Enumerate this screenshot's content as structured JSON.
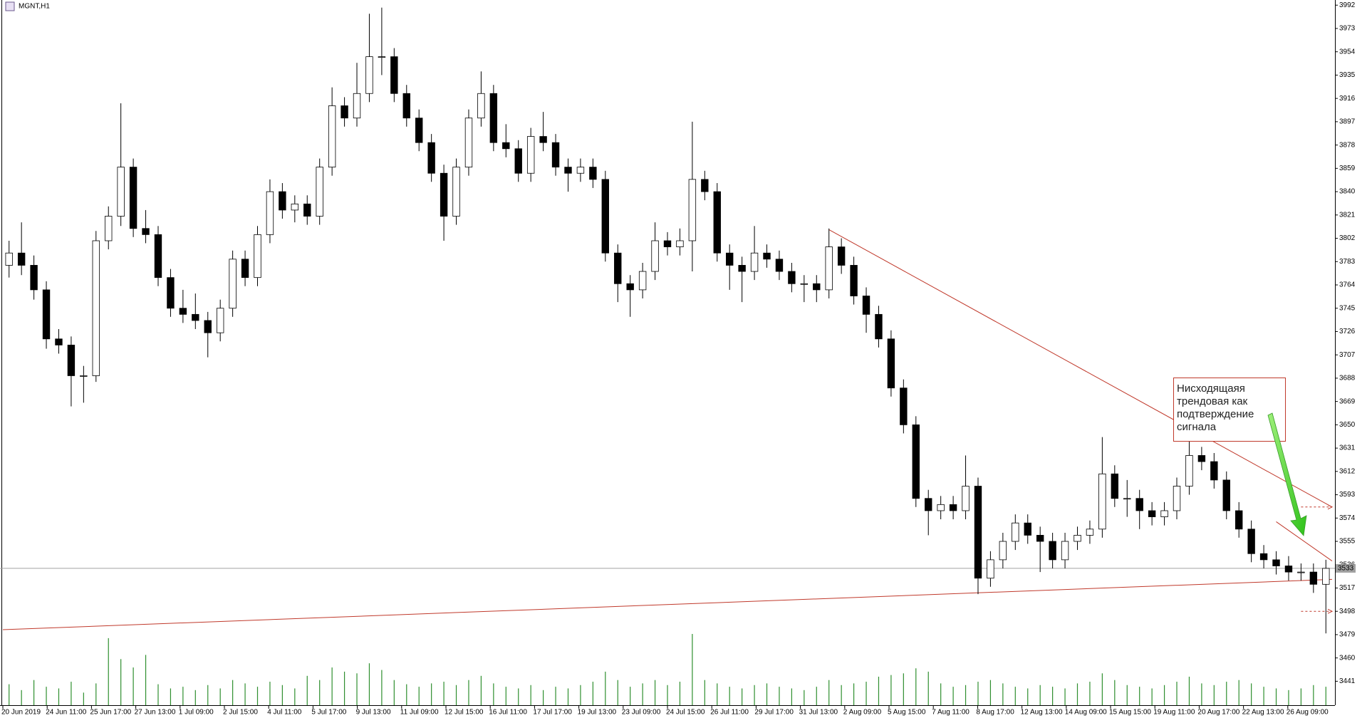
{
  "chart_data": {
    "type": "candlestick",
    "title": "MGNT,H1",
    "xticks": [
      "20 Jun 2019",
      "24 Jun 11:00",
      "25 Jun 17:00",
      "27 Jun 13:00",
      "1 Jul 09:00",
      "2 Jul 15:00",
      "4 Jul 11:00",
      "5 Jul 17:00",
      "9 Jul 13:00",
      "11 Jul 09:00",
      "12 Jul 15:00",
      "16 Jul 11:00",
      "17 Jul 17:00",
      "19 Jul 13:00",
      "23 Jul 09:00",
      "24 Jul 15:00",
      "26 Jul 11:00",
      "29 Jul 17:00",
      "31 Jul 13:00",
      "2 Aug 09:00",
      "5 Aug 15:00",
      "7 Aug 11:00",
      "8 Aug 17:00",
      "12 Aug 13:00",
      "14 Aug 09:00",
      "15 Aug 15:00",
      "19 Aug 11:00",
      "20 Aug 17:00",
      "22 Aug 13:00",
      "26 Aug 09:00"
    ],
    "open": [
      3780,
      3790,
      3780,
      3760,
      3720,
      3715,
      3690,
      3690,
      3800,
      3820,
      3860,
      3810,
      3805,
      3770,
      3745,
      3740,
      3735,
      3725,
      3745,
      3785,
      3770,
      3805,
      3840,
      3825,
      3830,
      3820,
      3860,
      3910,
      3900,
      3920,
      3950,
      3950,
      3920,
      3900,
      3880,
      3855,
      3820,
      3860,
      3900,
      3920,
      3880,
      3875,
      3855,
      3885,
      3880,
      3860,
      3855,
      3860,
      3850,
      3790,
      3765,
      3760,
      3775,
      3800,
      3795,
      3800,
      3850,
      3840,
      3790,
      3780,
      3775,
      3790,
      3785,
      3775,
      3765,
      3765,
      3760,
      3795,
      3780,
      3755,
      3740,
      3720,
      3680,
      3650,
      3590,
      3580,
      3585,
      3580,
      3600,
      3525,
      3540,
      3555,
      3570,
      3560,
      3555,
      3540,
      3555,
      3560,
      3565,
      3610,
      3590,
      3590,
      3580,
      3575,
      3580,
      3600,
      3625,
      3620,
      3605,
      3580,
      3565,
      3545,
      3540,
      3535,
      3530,
      3530,
      3520
    ],
    "high": [
      3800,
      3815,
      3788,
      3767,
      3728,
      3722,
      3698,
      3808,
      3828,
      3912,
      3867,
      3825,
      3812,
      3777,
      3760,
      3757,
      3742,
      3752,
      3792,
      3792,
      3812,
      3850,
      3847,
      3837,
      3837,
      3867,
      3925,
      3917,
      3945,
      3985,
      3990,
      3957,
      3927,
      3907,
      3887,
      3862,
      3867,
      3907,
      3938,
      3927,
      3895,
      3882,
      3892,
      3905,
      3887,
      3867,
      3867,
      3867,
      3857,
      3797,
      3772,
      3782,
      3815,
      3807,
      3810,
      3897,
      3857,
      3847,
      3797,
      3787,
      3812,
      3797,
      3792,
      3782,
      3772,
      3772,
      3810,
      3802,
      3787,
      3762,
      3747,
      3727,
      3687,
      3657,
      3597,
      3592,
      3592,
      3625,
      3607,
      3547,
      3562,
      3577,
      3577,
      3567,
      3562,
      3562,
      3567,
      3572,
      3640,
      3617,
      3605,
      3597,
      3587,
      3587,
      3607,
      3640,
      3632,
      3627,
      3612,
      3587,
      3572,
      3552,
      3547,
      3543,
      3537,
      3537,
      3540
    ],
    "low": [
      3770,
      3772,
      3752,
      3712,
      3708,
      3665,
      3668,
      3685,
      3793,
      3812,
      3803,
      3798,
      3763,
      3738,
      3733,
      3728,
      3705,
      3718,
      3738,
      3763,
      3763,
      3798,
      3818,
      3815,
      3813,
      3813,
      3853,
      3893,
      3893,
      3913,
      3935,
      3913,
      3893,
      3873,
      3848,
      3800,
      3813,
      3853,
      3893,
      3873,
      3868,
      3848,
      3848,
      3873,
      3853,
      3840,
      3848,
      3843,
      3783,
      3750,
      3738,
      3753,
      3768,
      3788,
      3788,
      3775,
      3833,
      3783,
      3760,
      3750,
      3768,
      3778,
      3768,
      3758,
      3750,
      3750,
      3753,
      3773,
      3748,
      3725,
      3713,
      3673,
      3643,
      3583,
      3560,
      3573,
      3573,
      3573,
      3512,
      3518,
      3533,
      3548,
      3553,
      3530,
      3533,
      3533,
      3548,
      3553,
      3558,
      3583,
      3575,
      3565,
      3568,
      3568,
      3573,
      3593,
      3613,
      3598,
      3573,
      3558,
      3538,
      3533,
      3528,
      3523,
      3523,
      3513,
      3480
    ],
    "close": [
      3790,
      3780,
      3760,
      3720,
      3715,
      3690,
      3690,
      3800,
      3820,
      3860,
      3810,
      3805,
      3770,
      3745,
      3740,
      3735,
      3725,
      3745,
      3785,
      3770,
      3805,
      3840,
      3825,
      3830,
      3820,
      3860,
      3910,
      3900,
      3920,
      3950,
      3950,
      3920,
      3900,
      3880,
      3855,
      3820,
      3860,
      3900,
      3920,
      3880,
      3875,
      3855,
      3885,
      3880,
      3860,
      3855,
      3860,
      3850,
      3790,
      3765,
      3760,
      3775,
      3800,
      3795,
      3800,
      3850,
      3840,
      3790,
      3780,
      3775,
      3790,
      3785,
      3775,
      3765,
      3765,
      3760,
      3795,
      3780,
      3755,
      3740,
      3720,
      3680,
      3650,
      3590,
      3580,
      3585,
      3580,
      3600,
      3525,
      3540,
      3555,
      3570,
      3560,
      3555,
      3540,
      3555,
      3560,
      3565,
      3610,
      3590,
      3590,
      3580,
      3575,
      3580,
      3600,
      3625,
      3620,
      3605,
      3580,
      3565,
      3545,
      3540,
      3535,
      3530,
      3530,
      3520,
      3533
    ],
    "volume": [
      25,
      18,
      30,
      22,
      20,
      28,
      15,
      26,
      80,
      55,
      45,
      60,
      25,
      20,
      22,
      18,
      24,
      20,
      30,
      26,
      22,
      28,
      24,
      20,
      35,
      30,
      45,
      40,
      38,
      50,
      42,
      30,
      25,
      22,
      26,
      28,
      24,
      30,
      35,
      26,
      22,
      20,
      24,
      18,
      22,
      20,
      24,
      28,
      40,
      30,
      22,
      26,
      30,
      24,
      28,
      85,
      30,
      26,
      22,
      20,
      24,
      26,
      22,
      20,
      18,
      22,
      30,
      24,
      26,
      28,
      34,
      36,
      38,
      44,
      40,
      26,
      22,
      24,
      28,
      30,
      26,
      22,
      20,
      24,
      22,
      20,
      26,
      28,
      38,
      30,
      24,
      22,
      20,
      24,
      28,
      34,
      26,
      24,
      28,
      30,
      26,
      22,
      20,
      18,
      20,
      24,
      22
    ],
    "volume_color": "#2f8f2f",
    "up_color": "#ffffff",
    "down_color": "#000000",
    "ylim": [
      3421.5,
      3996.2
    ],
    "yticks": [
      3992,
      3973,
      3954,
      3935,
      3916,
      3897,
      3878,
      3859,
      3840,
      3821,
      3802,
      3783,
      3764,
      3745,
      3726,
      3707,
      3688,
      3669,
      3650,
      3631,
      3612,
      3593,
      3574,
      3555,
      3536,
      3517,
      3498,
      3479,
      3460,
      3441
    ],
    "current_price": 3533,
    "trend_color": "#c0392b",
    "trendlines": [
      {
        "x": [
          66.5,
          107
        ],
        "y": [
          3809,
          3583
        ]
      },
      {
        "x": [
          0,
          107
        ],
        "y": [
          3483,
          3524
        ]
      },
      {
        "x": [
          102.5,
          107
        ],
        "y": [
          3571,
          3539
        ]
      }
    ],
    "levels": {
      "x": [
        104.5,
        107
      ],
      "y": [
        3583,
        3498
      ]
    },
    "annotation": [
      "Нисходящаяя",
      "трендовая как",
      "подтверждение",
      "сигнала"
    ]
  }
}
